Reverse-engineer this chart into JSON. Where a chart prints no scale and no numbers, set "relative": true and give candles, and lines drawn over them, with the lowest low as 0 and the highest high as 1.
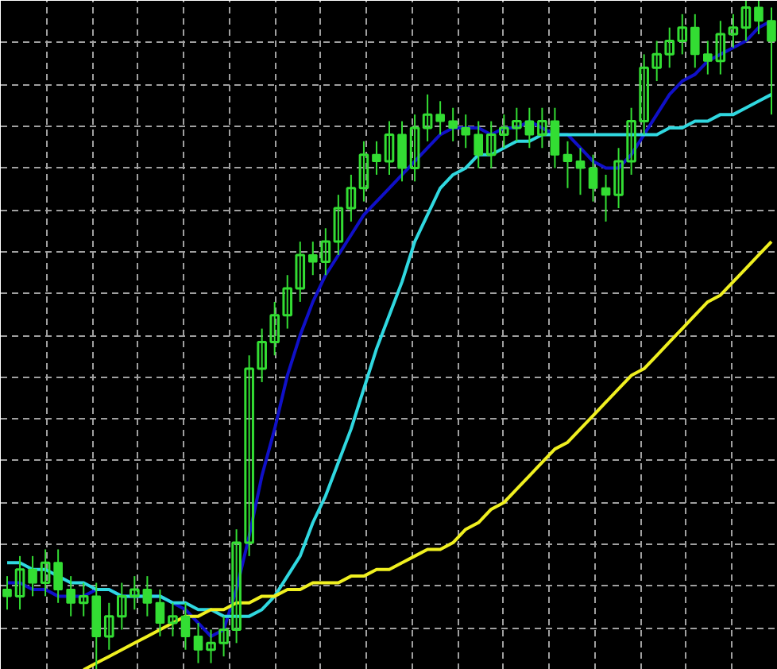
{
  "chart_data": {
    "type": "candlestick",
    "relative": true,
    "grid": true,
    "color": "#33dd33",
    "categories": [
      null,
      null,
      null,
      null,
      null,
      null,
      null,
      null,
      null,
      null,
      null,
      null,
      null,
      null,
      null,
      null,
      null,
      null,
      null,
      null,
      null,
      null,
      null,
      null,
      null,
      null,
      null,
      null,
      null,
      null,
      null,
      null,
      null,
      null,
      null,
      null,
      null,
      null,
      null,
      null,
      null,
      null,
      null,
      null,
      null,
      null,
      null,
      null,
      null,
      null,
      null,
      null,
      null,
      null,
      null,
      null,
      null,
      null,
      null,
      null,
      null
    ],
    "ohlc": [
      [
        0.12,
        0.14,
        0.09,
        0.11
      ],
      [
        0.11,
        0.17,
        0.09,
        0.15
      ],
      [
        0.15,
        0.17,
        0.11,
        0.13
      ],
      [
        0.13,
        0.18,
        0.11,
        0.16
      ],
      [
        0.16,
        0.18,
        0.1,
        0.12
      ],
      [
        0.12,
        0.14,
        0.08,
        0.1
      ],
      [
        0.1,
        0.13,
        0.08,
        0.11
      ],
      [
        0.11,
        0.13,
        0.0,
        0.05
      ],
      [
        0.05,
        0.1,
        0.03,
        0.08
      ],
      [
        0.08,
        0.13,
        0.06,
        0.11
      ],
      [
        0.11,
        0.14,
        0.09,
        0.12
      ],
      [
        0.12,
        0.14,
        0.08,
        0.1
      ],
      [
        0.1,
        0.12,
        0.05,
        0.07
      ],
      [
        0.07,
        0.1,
        0.05,
        0.08
      ],
      [
        0.08,
        0.1,
        0.03,
        0.05
      ],
      [
        0.05,
        0.07,
        0.01,
        0.03
      ],
      [
        0.03,
        0.06,
        0.01,
        0.04
      ],
      [
        0.04,
        0.08,
        0.02,
        0.06
      ],
      [
        0.06,
        0.21,
        0.04,
        0.19
      ],
      [
        0.19,
        0.47,
        0.17,
        0.45
      ],
      [
        0.45,
        0.51,
        0.43,
        0.49
      ],
      [
        0.49,
        0.55,
        0.47,
        0.53
      ],
      [
        0.53,
        0.59,
        0.51,
        0.57
      ],
      [
        0.57,
        0.64,
        0.55,
        0.62
      ],
      [
        0.62,
        0.64,
        0.59,
        0.61
      ],
      [
        0.61,
        0.66,
        0.59,
        0.64
      ],
      [
        0.64,
        0.71,
        0.62,
        0.69
      ],
      [
        0.69,
        0.74,
        0.67,
        0.72
      ],
      [
        0.72,
        0.79,
        0.7,
        0.77
      ],
      [
        0.77,
        0.79,
        0.74,
        0.76
      ],
      [
        0.76,
        0.82,
        0.74,
        0.8
      ],
      [
        0.8,
        0.82,
        0.73,
        0.75
      ],
      [
        0.75,
        0.83,
        0.73,
        0.81
      ],
      [
        0.81,
        0.86,
        0.79,
        0.83
      ],
      [
        0.83,
        0.85,
        0.8,
        0.82
      ],
      [
        0.82,
        0.84,
        0.79,
        0.81
      ],
      [
        0.81,
        0.83,
        0.78,
        0.8
      ],
      [
        0.8,
        0.82,
        0.75,
        0.77
      ],
      [
        0.77,
        0.82,
        0.75,
        0.8
      ],
      [
        0.8,
        0.83,
        0.78,
        0.81
      ],
      [
        0.81,
        0.84,
        0.79,
        0.82
      ],
      [
        0.82,
        0.84,
        0.78,
        0.8
      ],
      [
        0.8,
        0.84,
        0.78,
        0.82
      ],
      [
        0.82,
        0.84,
        0.75,
        0.77
      ],
      [
        0.77,
        0.79,
        0.72,
        0.76
      ],
      [
        0.76,
        0.78,
        0.71,
        0.75
      ],
      [
        0.75,
        0.77,
        0.7,
        0.72
      ],
      [
        0.72,
        0.74,
        0.67,
        0.71
      ],
      [
        0.71,
        0.78,
        0.69,
        0.76
      ],
      [
        0.76,
        0.84,
        0.74,
        0.82
      ],
      [
        0.82,
        0.92,
        0.8,
        0.9
      ],
      [
        0.9,
        0.94,
        0.88,
        0.92
      ],
      [
        0.92,
        0.96,
        0.9,
        0.94
      ],
      [
        0.94,
        0.98,
        0.92,
        0.96
      ],
      [
        0.96,
        0.98,
        0.9,
        0.92
      ],
      [
        0.92,
        0.94,
        0.89,
        0.91
      ],
      [
        0.91,
        0.97,
        0.89,
        0.95
      ],
      [
        0.95,
        0.98,
        0.93,
        0.96
      ],
      [
        0.96,
        1.0,
        0.94,
        0.99
      ],
      [
        0.99,
        1.0,
        0.95,
        0.97
      ],
      [
        0.97,
        0.99,
        0.83,
        0.94
      ]
    ],
    "series": [
      {
        "type": "line",
        "color": "#1010c8",
        "values": [
          0.13,
          0.13,
          0.12,
          0.12,
          0.11,
          0.11,
          0.11,
          0.12,
          0.12,
          0.11,
          0.11,
          0.11,
          0.11,
          0.1,
          0.09,
          0.07,
          0.05,
          0.06,
          0.12,
          0.2,
          0.29,
          0.36,
          0.44,
          0.5,
          0.55,
          0.59,
          0.62,
          0.65,
          0.68,
          0.7,
          0.72,
          0.74,
          0.76,
          0.78,
          0.8,
          0.81,
          0.81,
          0.81,
          0.8,
          0.81,
          0.81,
          0.82,
          0.81,
          0.8,
          0.8,
          0.78,
          0.76,
          0.75,
          0.75,
          0.77,
          0.8,
          0.83,
          0.86,
          0.88,
          0.89,
          0.91,
          0.92,
          0.93,
          0.94,
          0.96,
          0.97
        ]
      },
      {
        "type": "line",
        "color": "#30d8e0",
        "values": [
          0.16,
          0.16,
          0.15,
          0.15,
          0.14,
          0.13,
          0.13,
          0.12,
          0.12,
          0.11,
          0.11,
          0.11,
          0.11,
          0.1,
          0.1,
          0.09,
          0.09,
          0.08,
          0.08,
          0.08,
          0.09,
          0.11,
          0.14,
          0.17,
          0.22,
          0.26,
          0.31,
          0.36,
          0.42,
          0.48,
          0.53,
          0.58,
          0.64,
          0.68,
          0.72,
          0.74,
          0.75,
          0.77,
          0.77,
          0.78,
          0.79,
          0.79,
          0.8,
          0.8,
          0.8,
          0.8,
          0.8,
          0.8,
          0.8,
          0.8,
          0.8,
          0.8,
          0.81,
          0.81,
          0.82,
          0.82,
          0.83,
          0.83,
          0.84,
          0.85,
          0.86
        ]
      },
      {
        "type": "line",
        "color": "#f0f020",
        "values": [
          null,
          null,
          null,
          null,
          null,
          null,
          0.0,
          0.01,
          0.02,
          0.03,
          0.04,
          0.05,
          0.06,
          0.07,
          0.08,
          0.08,
          0.09,
          0.09,
          0.1,
          0.1,
          0.11,
          0.11,
          0.12,
          0.12,
          0.13,
          0.13,
          0.13,
          0.14,
          0.14,
          0.15,
          0.15,
          0.16,
          0.17,
          0.18,
          0.18,
          0.19,
          0.21,
          0.22,
          0.24,
          0.25,
          0.27,
          0.29,
          0.31,
          0.33,
          0.34,
          0.36,
          0.38,
          0.4,
          0.42,
          0.44,
          0.45,
          0.47,
          0.49,
          0.51,
          0.53,
          0.55,
          0.56,
          0.58,
          0.6,
          0.62,
          0.64
        ]
      }
    ]
  }
}
